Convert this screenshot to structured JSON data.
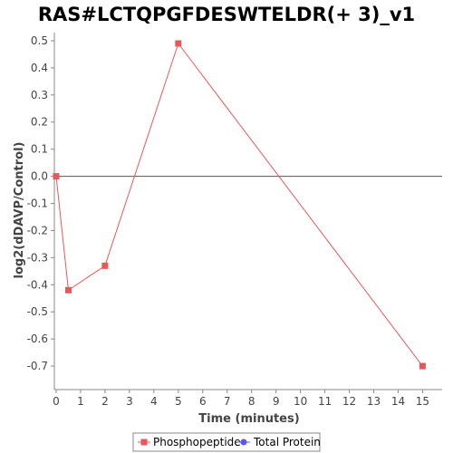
{
  "chart_data": {
    "type": "line",
    "title": "RAS#LCTQPGFDESWTELDR(+ 3)_v1",
    "xlabel": "Time (minutes)",
    "ylabel": "log2(dDAVP/Control)",
    "xlim": [
      0,
      15.8
    ],
    "ylim": [
      -0.78,
      0.53
    ],
    "xticks": [
      0,
      1,
      2,
      3,
      4,
      5,
      6,
      7,
      8,
      9,
      10,
      11,
      12,
      13,
      14,
      15
    ],
    "yticks": [
      -0.7,
      -0.6,
      -0.5,
      -0.4,
      -0.3,
      -0.2,
      -0.1,
      0.0,
      0.1,
      0.2,
      0.3,
      0.4,
      0.5
    ],
    "ytick_labels": [
      "-0.7",
      "-0.6",
      "-0.5",
      "-0.4",
      "-0.3",
      "-0.2",
      "-0.1",
      "0.0",
      "0.1",
      "0.2",
      "0.3",
      "0.4",
      "0.5"
    ],
    "zero_line": true,
    "grid": false,
    "legend_position": "bottom",
    "series": [
      {
        "name": "Phosphopeptide",
        "color": "#e8585a",
        "marker": "square",
        "x": [
          0,
          0.5,
          2,
          5,
          15
        ],
        "y": [
          0.0,
          -0.42,
          -0.33,
          0.49,
          -0.7
        ]
      },
      {
        "name": "Total Protein",
        "color": "#5a5ae8",
        "marker": "circle",
        "x": [],
        "y": []
      }
    ]
  }
}
